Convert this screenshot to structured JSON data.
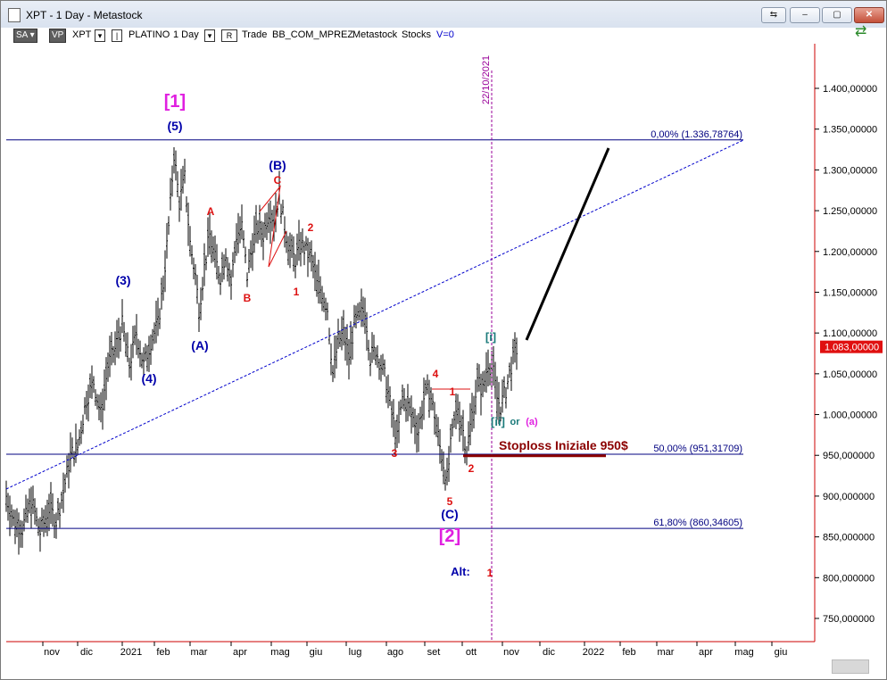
{
  "window": {
    "title": "XPT - 1 Day - Metastock",
    "buttons": [
      "⇆",
      "–",
      "▢",
      "✕"
    ]
  },
  "toolbar": {
    "sa": "SA",
    "vp": "VP",
    "symbol": "XPT",
    "name": "PLATINO",
    "period": "1 Day",
    "r": "R",
    "trade": "Trade",
    "system": "BB_COM_MPREZ",
    "source": "Metastock",
    "stocks": "Stocks",
    "v": "V=0",
    "dropdown_glyph": "▾"
  },
  "chart_data": {
    "type": "candlestick",
    "instrument": "XPT",
    "period": "1 Day",
    "y_range": [
      710000,
      1480000
    ],
    "y_ticks": [
      {
        "v": 750000,
        "label": "750,000000"
      },
      {
        "v": 800000,
        "label": "800,000000"
      },
      {
        "v": 850000,
        "label": "850,000000"
      },
      {
        "v": 900000,
        "label": "900,000000"
      },
      {
        "v": 950000,
        "label": "950,000000"
      },
      {
        "v": 1000000,
        "label": "1.000,00000"
      },
      {
        "v": 1050000,
        "label": "1.050,00000"
      },
      {
        "v": 1100000,
        "label": "1.100,00000"
      },
      {
        "v": 1150000,
        "label": "1.150,00000"
      },
      {
        "v": 1200000,
        "label": "1.200,00000"
      },
      {
        "v": 1250000,
        "label": "1.250,00000"
      },
      {
        "v": 1300000,
        "label": "1.300,00000"
      },
      {
        "v": 1350000,
        "label": "1.350,00000"
      },
      {
        "v": 1400000,
        "label": "1.400,00000"
      }
    ],
    "x_labels": [
      "nov",
      "dic",
      "2021",
      "feb",
      "mar",
      "apr",
      "mag",
      "giu",
      "lug",
      "ago",
      "set",
      "ott",
      "nov",
      "dic",
      "2022",
      "feb",
      "mar",
      "apr",
      "mag",
      "giu"
    ],
    "last_price": {
      "value": 1083000,
      "label": "1.083,00000"
    },
    "fib_levels": [
      {
        "v": 1336787.64,
        "label": "0,00% (1.336,78764)"
      },
      {
        "v": 951317.09,
        "label": "50,00% (951,31709)"
      },
      {
        "v": 860346.05,
        "label": "61,80% (860,34605)"
      }
    ],
    "vertical_marker": {
      "label": "22/10/2021"
    },
    "stoploss": {
      "label": "Stoploss Iniziale 950$",
      "value": 950000
    },
    "wave_labels": {
      "w1_major": "[1]",
      "w5_paren": "(5)",
      "w3_paren": "(3)",
      "w4_paren": "(4)",
      "wA_paren": "(A)",
      "wB_paren": "(B)",
      "wC_paren": "(C)",
      "w2_major": "[2]",
      "a": "A",
      "b": "B",
      "c": "C",
      "n1": "1",
      "n2": "2",
      "n3": "3",
      "n4": "4",
      "n5": "5",
      "n1b": "1",
      "n2b": "2",
      "wi": "[i]",
      "wii": "[ii]",
      "or_text": "or",
      "wa_small": "(a)",
      "alt": "Alt:",
      "alt1": "1"
    },
    "colors": {
      "grid_blue": "#000080",
      "border_red": "#cc0000",
      "wave_blue": "#0000aa",
      "wave_red": "#dd1111",
      "wave_magenta": "#e020e0",
      "wave_teal": "#1a7a7a",
      "stoploss": "#8b0000",
      "last_price_bg": "#e01010"
    }
  }
}
